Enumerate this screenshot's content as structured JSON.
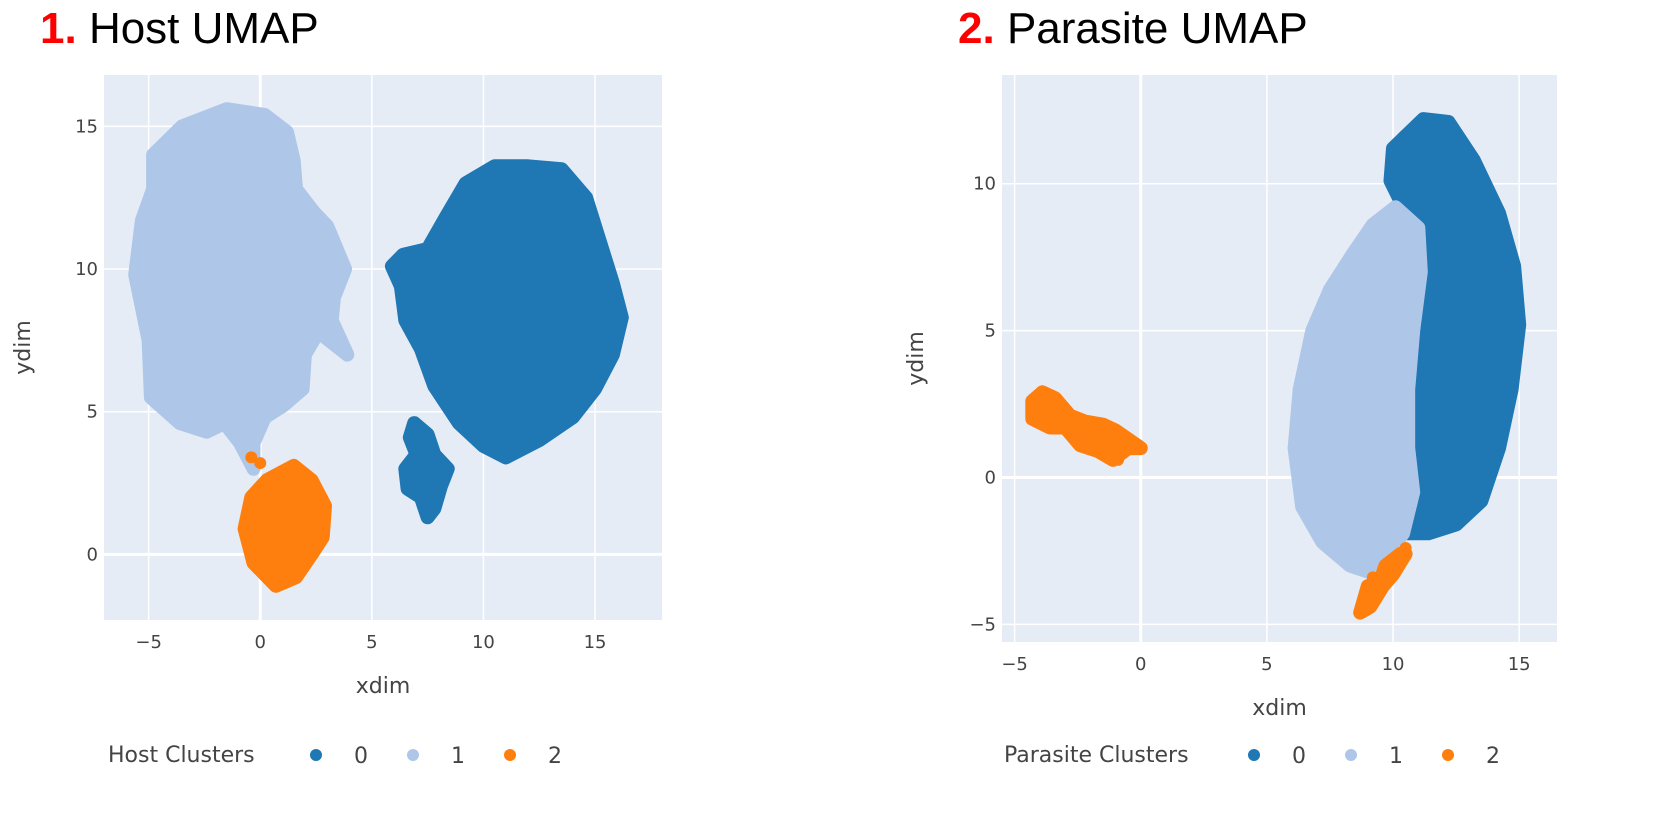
{
  "panels": [
    {
      "number": "1.",
      "title": "Host UMAP"
    },
    {
      "number": "2.",
      "title": "Parasite UMAP"
    }
  ],
  "colors": {
    "cluster_0": "#1f77b4",
    "cluster_1": "#aec7e8",
    "cluster_2": "#ff7f0e",
    "plot_bg": "#e5ecf6",
    "grid": "#ffffff",
    "title_number": "#ff0000"
  },
  "chart_data": [
    {
      "type": "scatter",
      "title": "Host UMAP",
      "xlabel": "xdim",
      "ylabel": "ydim",
      "xlim": [
        -7,
        18
      ],
      "ylim": [
        -2.3,
        16.8
      ],
      "xticks": [
        -5,
        0,
        5,
        10,
        15
      ],
      "yticks": [
        0,
        5,
        10,
        15
      ],
      "grid": true,
      "legend_title": "Host Clusters",
      "legend_position": "bottom",
      "series": [
        {
          "name": "0",
          "color": "#1f77b4",
          "outline": [
            [
              9.2,
              13.0
            ],
            [
              10.5,
              13.6
            ],
            [
              12.0,
              13.6
            ],
            [
              13.5,
              13.5
            ],
            [
              14.6,
              12.5
            ],
            [
              15.2,
              11.0
            ],
            [
              15.8,
              9.5
            ],
            [
              16.2,
              8.3
            ],
            [
              15.8,
              7.0
            ],
            [
              15.0,
              5.8
            ],
            [
              14.0,
              4.8
            ],
            [
              12.5,
              4.0
            ],
            [
              11.0,
              3.4
            ],
            [
              10.0,
              3.8
            ],
            [
              8.9,
              4.6
            ],
            [
              7.8,
              5.9
            ],
            [
              7.2,
              7.2
            ],
            [
              6.5,
              8.2
            ],
            [
              6.3,
              9.4
            ],
            [
              5.9,
              10.1
            ],
            [
              6.4,
              10.5
            ],
            [
              7.5,
              10.7
            ],
            [
              8.3,
              11.8
            ]
          ],
          "outline2": [
            [
              6.9,
              4.6
            ],
            [
              7.5,
              4.2
            ],
            [
              7.8,
              3.5
            ],
            [
              8.4,
              3.0
            ],
            [
              8.1,
              2.4
            ],
            [
              7.8,
              1.6
            ],
            [
              7.5,
              1.3
            ],
            [
              7.2,
              2.0
            ],
            [
              6.6,
              2.3
            ],
            [
              6.5,
              3.0
            ],
            [
              7.0,
              3.5
            ],
            [
              6.7,
              4.1
            ]
          ]
        },
        {
          "name": "1",
          "color": "#aec7e8",
          "outline": [
            [
              -4.8,
              14.0
            ],
            [
              -3.5,
              15.0
            ],
            [
              -1.5,
              15.6
            ],
            [
              0.2,
              15.4
            ],
            [
              1.2,
              14.8
            ],
            [
              1.5,
              13.8
            ],
            [
              1.6,
              12.8
            ],
            [
              2.4,
              12.0
            ],
            [
              3.0,
              11.5
            ],
            [
              3.8,
              10.0
            ],
            [
              3.3,
              9.0
            ],
            [
              3.2,
              8.2
            ],
            [
              3.9,
              7.0
            ],
            [
              2.6,
              7.8
            ],
            [
              2.0,
              7.0
            ],
            [
              1.9,
              5.8
            ],
            [
              1.0,
              5.2
            ],
            [
              0.2,
              4.8
            ],
            [
              -0.3,
              3.9
            ],
            [
              -0.3,
              3.0
            ],
            [
              -0.9,
              3.9
            ],
            [
              -1.6,
              4.6
            ],
            [
              -2.4,
              4.3
            ],
            [
              -3.6,
              4.6
            ],
            [
              -4.9,
              5.5
            ],
            [
              -5.0,
              7.5
            ],
            [
              -5.6,
              9.8
            ],
            [
              -5.3,
              11.7
            ],
            [
              -4.8,
              12.8
            ]
          ]
        },
        {
          "name": "2",
          "color": "#ff7f0e",
          "outline": [
            [
              0.3,
              2.6
            ],
            [
              1.5,
              3.1
            ],
            [
              2.3,
              2.6
            ],
            [
              2.9,
              1.7
            ],
            [
              2.8,
              0.6
            ],
            [
              2.3,
              0.0
            ],
            [
              1.6,
              -0.8
            ],
            [
              0.7,
              -1.1
            ],
            [
              -0.3,
              -0.3
            ],
            [
              -0.7,
              0.9
            ],
            [
              -0.4,
              2.0
            ]
          ],
          "extra_points": [
            [
              -0.4,
              3.4
            ],
            [
              0.0,
              3.2
            ]
          ]
        }
      ]
    },
    {
      "type": "scatter",
      "title": "Parasite UMAP",
      "xlabel": "xdim",
      "ylabel": "ydim",
      "xlim": [
        -5.5,
        16.5
      ],
      "ylim": [
        -5.6,
        13.7
      ],
      "xticks": [
        -5,
        0,
        5,
        10,
        15
      ],
      "yticks": [
        -5,
        0,
        5,
        10
      ],
      "grid": true,
      "legend_title": "Parasite Clusters",
      "legend_position": "bottom",
      "series": [
        {
          "name": "0",
          "color": "#1f77b4",
          "outline": [
            [
              11.2,
              12.2
            ],
            [
              12.2,
              12.1
            ],
            [
              13.2,
              10.8
            ],
            [
              14.2,
              9.0
            ],
            [
              14.8,
              7.2
            ],
            [
              15.0,
              5.2
            ],
            [
              14.7,
              3.0
            ],
            [
              14.2,
              1.0
            ],
            [
              13.5,
              -0.8
            ],
            [
              12.5,
              -1.6
            ],
            [
              11.4,
              -1.9
            ],
            [
              10.4,
              -1.9
            ],
            [
              10.8,
              -0.5
            ],
            [
              10.6,
              1.0
            ],
            [
              10.6,
              3.0
            ],
            [
              10.8,
              5.0
            ],
            [
              11.0,
              6.5
            ],
            [
              11.1,
              7.8
            ],
            [
              11.0,
              9.0
            ],
            [
              10.3,
              9.4
            ],
            [
              9.9,
              10.1
            ],
            [
              10.0,
              11.2
            ]
          ]
        },
        {
          "name": "1",
          "color": "#aec7e8",
          "outline": [
            [
              10.1,
              9.2
            ],
            [
              11.0,
              8.5
            ],
            [
              11.1,
              7.0
            ],
            [
              10.8,
              5.0
            ],
            [
              10.6,
              3.0
            ],
            [
              10.6,
              1.0
            ],
            [
              10.8,
              -0.5
            ],
            [
              10.4,
              -1.9
            ],
            [
              9.8,
              -2.6
            ],
            [
              9.0,
              -3.2
            ],
            [
              8.3,
              -3.0
            ],
            [
              7.2,
              -2.2
            ],
            [
              6.4,
              -1.0
            ],
            [
              6.1,
              1.0
            ],
            [
              6.3,
              3.0
            ],
            [
              6.8,
              5.0
            ],
            [
              7.5,
              6.4
            ],
            [
              8.4,
              7.6
            ],
            [
              9.2,
              8.6
            ]
          ]
        },
        {
          "name": "2",
          "color": "#ff7f0e",
          "outline": [
            [
              -3.9,
              2.9
            ],
            [
              -3.4,
              2.7
            ],
            [
              -2.8,
              2.1
            ],
            [
              -2.2,
              1.9
            ],
            [
              -1.5,
              1.8
            ],
            [
              -1.0,
              1.6
            ],
            [
              -0.5,
              1.3
            ],
            [
              0.0,
              1.0
            ],
            [
              -0.5,
              1.0
            ],
            [
              -1.1,
              0.6
            ],
            [
              -1.7,
              0.9
            ],
            [
              -2.4,
              1.1
            ],
            [
              -3.0,
              1.7
            ],
            [
              -3.6,
              1.7
            ],
            [
              -4.3,
              2.0
            ],
            [
              -4.3,
              2.6
            ]
          ],
          "outline2": [
            [
              10.3,
              -2.6
            ],
            [
              9.7,
              -3.0
            ],
            [
              9.5,
              -3.5
            ],
            [
              9.0,
              -3.7
            ],
            [
              8.7,
              -4.6
            ],
            [
              9.1,
              -4.4
            ],
            [
              9.6,
              -3.7
            ],
            [
              10.0,
              -3.3
            ],
            [
              10.5,
              -2.6
            ]
          ],
          "extra_points": [
            [
              -0.9,
              0.6
            ],
            [
              10.5,
              -2.4
            ],
            [
              9.2,
              -3.4
            ]
          ]
        }
      ]
    }
  ]
}
